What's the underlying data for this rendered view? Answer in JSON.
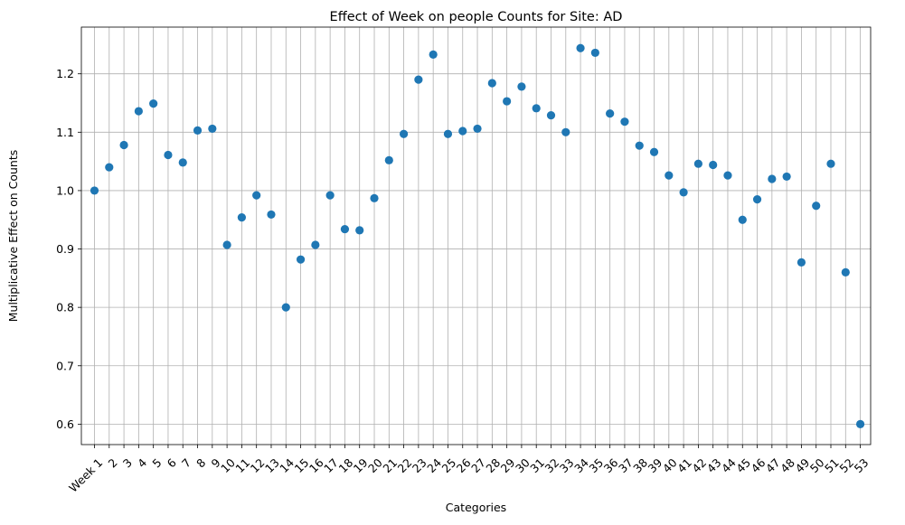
{
  "chart_data": {
    "type": "scatter",
    "title": "Effect of Week on people Counts for Site: AD",
    "xlabel": "Categories",
    "ylabel": "Multiplicative Effect on Counts",
    "categories": [
      "Week 1",
      "2",
      "3",
      "4",
      "5",
      "6",
      "7",
      "8",
      "9",
      "10",
      "11",
      "12",
      "13",
      "14",
      "15",
      "16",
      "17",
      "18",
      "19",
      "20",
      "21",
      "22",
      "23",
      "24",
      "25",
      "26",
      "27",
      "28",
      "29",
      "30",
      "31",
      "32",
      "33",
      "34",
      "35",
      "36",
      "37",
      "38",
      "39",
      "40",
      "41",
      "42",
      "43",
      "44",
      "45",
      "46",
      "47",
      "48",
      "49",
      "50",
      "51",
      "52",
      "53"
    ],
    "values": [
      1.0,
      1.04,
      1.078,
      1.136,
      1.149,
      1.061,
      1.048,
      1.103,
      1.106,
      0.907,
      0.954,
      0.992,
      0.959,
      0.8,
      0.882,
      0.907,
      0.992,
      0.934,
      0.932,
      0.987,
      1.052,
      1.097,
      1.19,
      1.233,
      1.097,
      1.102,
      1.106,
      1.184,
      1.153,
      1.178,
      1.141,
      1.129,
      1.1,
      1.244,
      1.236,
      1.132,
      1.118,
      1.077,
      1.066,
      1.026,
      0.997,
      1.046,
      1.044,
      1.026,
      0.95,
      0.985,
      1.02,
      1.024,
      0.877,
      0.974,
      1.046,
      0.86,
      0.6
    ],
    "ylim": [
      0.565,
      1.28
    ],
    "yticks": [
      0.6,
      0.7,
      0.8,
      0.9,
      1.0,
      1.1,
      1.2
    ],
    "ytick_labels": [
      "0.6",
      "0.7",
      "0.8",
      "0.9",
      "1.0",
      "1.1",
      "1.2"
    ],
    "grid": true,
    "marker_color": "#1f77b4",
    "grid_color": "#b0b0b0"
  }
}
